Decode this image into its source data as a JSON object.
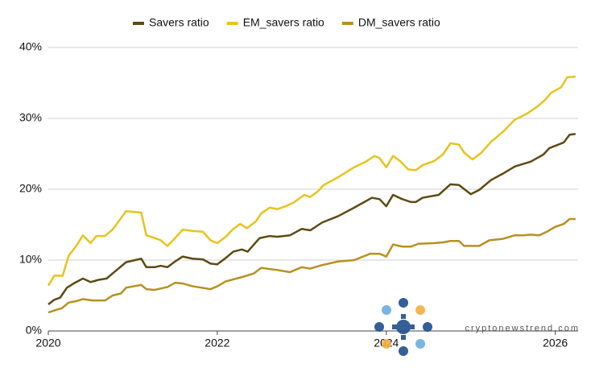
{
  "chart_data": {
    "type": "line",
    "watermark": "cryptonewstrend.com",
    "xlim": [
      2020,
      2026.27
    ],
    "xticks": [
      2020,
      2022,
      2024,
      2026
    ],
    "ylim": [
      0,
      40
    ],
    "yticks": [
      {
        "value": 0,
        "label": "0%"
      },
      {
        "value": 10,
        "label": "10%"
      },
      {
        "value": 20,
        "label": "20%"
      },
      {
        "value": 30,
        "label": "30%"
      },
      {
        "value": 40,
        "label": "40%"
      }
    ],
    "grid": true,
    "legend": "top",
    "series": [
      {
        "name": "Savers ratio",
        "color": "#5e4a12",
        "x": [
          2020.0,
          2020.07,
          2020.14,
          2020.22,
          2020.3,
          2020.41,
          2020.5,
          2020.59,
          2020.69,
          2020.78,
          2020.92,
          2021.1,
          2021.16,
          2021.26,
          2021.33,
          2021.41,
          2021.5,
          2021.59,
          2021.71,
          2021.83,
          2021.92,
          2022.0,
          2022.1,
          2022.19,
          2022.29,
          2022.36,
          2022.5,
          2022.62,
          2022.71,
          2022.86,
          2023.0,
          2023.1,
          2023.24,
          2023.43,
          2023.62,
          2023.71,
          2023.83,
          2023.92,
          2024.0,
          2024.08,
          2024.19,
          2024.29,
          2024.35,
          2024.43,
          2024.62,
          2024.76,
          2024.86,
          2025.0,
          2025.1,
          2025.24,
          2025.38,
          2025.52,
          2025.71,
          2025.86,
          2025.93,
          2026.1,
          2026.17,
          2026.24
        ],
        "values": [
          3.75,
          4.4,
          4.7,
          6.1,
          6.7,
          7.4,
          6.9,
          7.2,
          7.4,
          8.3,
          9.7,
          10.2,
          9.0,
          9.0,
          9.2,
          9.0,
          9.8,
          10.5,
          10.2,
          10.1,
          9.5,
          9.4,
          10.3,
          11.2,
          11.5,
          11.2,
          13.1,
          13.4,
          13.3,
          13.5,
          14.4,
          14.2,
          15.3,
          16.2,
          17.4,
          18.0,
          18.8,
          18.6,
          17.6,
          19.2,
          18.6,
          18.2,
          18.2,
          18.8,
          19.2,
          20.7,
          20.6,
          19.3,
          19.9,
          21.3,
          22.2,
          23.2,
          23.9,
          24.9,
          25.8,
          26.6,
          27.7,
          27.8
        ]
      },
      {
        "name": "EM_savers ratio",
        "color": "#e8c31c",
        "x": [
          2020.0,
          2020.07,
          2020.17,
          2020.24,
          2020.33,
          2020.41,
          2020.5,
          2020.57,
          2020.67,
          2020.76,
          2020.92,
          2021.1,
          2021.16,
          2021.26,
          2021.33,
          2021.41,
          2021.5,
          2021.59,
          2021.71,
          2021.83,
          2021.92,
          2022.0,
          2022.1,
          2022.19,
          2022.27,
          2022.35,
          2022.46,
          2022.52,
          2022.62,
          2022.71,
          2022.81,
          2022.9,
          2023.03,
          2023.1,
          2023.19,
          2023.26,
          2023.43,
          2023.62,
          2023.76,
          2023.86,
          2023.92,
          2024.0,
          2024.08,
          2024.16,
          2024.26,
          2024.35,
          2024.43,
          2024.57,
          2024.67,
          2024.76,
          2024.86,
          2024.92,
          2025.02,
          2025.12,
          2025.24,
          2025.38,
          2025.52,
          2025.67,
          2025.78,
          2025.88,
          2025.95,
          2026.07,
          2026.14,
          2026.24
        ],
        "values": [
          6.4,
          7.8,
          7.8,
          10.6,
          12.0,
          13.5,
          12.4,
          13.4,
          13.4,
          14.3,
          16.9,
          16.7,
          13.5,
          13.1,
          12.8,
          12.0,
          13.1,
          14.3,
          14.1,
          14.0,
          12.8,
          12.4,
          13.3,
          14.4,
          15.1,
          14.5,
          15.5,
          16.6,
          17.4,
          17.2,
          17.6,
          18.1,
          19.2,
          18.9,
          19.7,
          20.6,
          21.7,
          23.1,
          23.9,
          24.7,
          24.4,
          23.1,
          24.7,
          24.0,
          22.8,
          22.7,
          23.4,
          24.0,
          24.9,
          26.5,
          26.3,
          25.2,
          24.2,
          25.1,
          26.7,
          28.1,
          29.8,
          30.7,
          31.6,
          32.6,
          33.6,
          34.4,
          35.8,
          35.9
        ]
      },
      {
        "name": "DM_savers ratio",
        "color": "#b8901f",
        "x": [
          2020.0,
          2020.1,
          2020.16,
          2020.24,
          2020.33,
          2020.41,
          2020.52,
          2020.67,
          2020.76,
          2020.86,
          2020.92,
          2021.1,
          2021.16,
          2021.26,
          2021.41,
          2021.5,
          2021.59,
          2021.71,
          2021.92,
          2022.0,
          2022.1,
          2022.29,
          2022.43,
          2022.52,
          2022.71,
          2022.86,
          2023.0,
          2023.1,
          2023.24,
          2023.43,
          2023.62,
          2023.81,
          2023.92,
          2024.0,
          2024.08,
          2024.19,
          2024.29,
          2024.38,
          2024.57,
          2024.67,
          2024.76,
          2024.86,
          2024.92,
          2025.1,
          2025.22,
          2025.38,
          2025.52,
          2025.62,
          2025.71,
          2025.81,
          2025.9,
          2026.0,
          2026.1,
          2026.17,
          2026.24
        ],
        "values": [
          2.6,
          3.0,
          3.2,
          4.0,
          4.2,
          4.5,
          4.3,
          4.3,
          5.0,
          5.3,
          6.1,
          6.5,
          5.9,
          5.8,
          6.2,
          6.8,
          6.7,
          6.3,
          5.9,
          6.3,
          7.0,
          7.6,
          8.1,
          8.9,
          8.6,
          8.3,
          9.0,
          8.8,
          9.3,
          9.8,
          10.0,
          10.9,
          10.9,
          10.5,
          12.2,
          11.9,
          11.9,
          12.3,
          12.4,
          12.5,
          12.7,
          12.7,
          12.0,
          12.0,
          12.8,
          13.0,
          13.5,
          13.5,
          13.6,
          13.5,
          14.0,
          14.7,
          15.1,
          15.8,
          15.8
        ]
      }
    ]
  }
}
